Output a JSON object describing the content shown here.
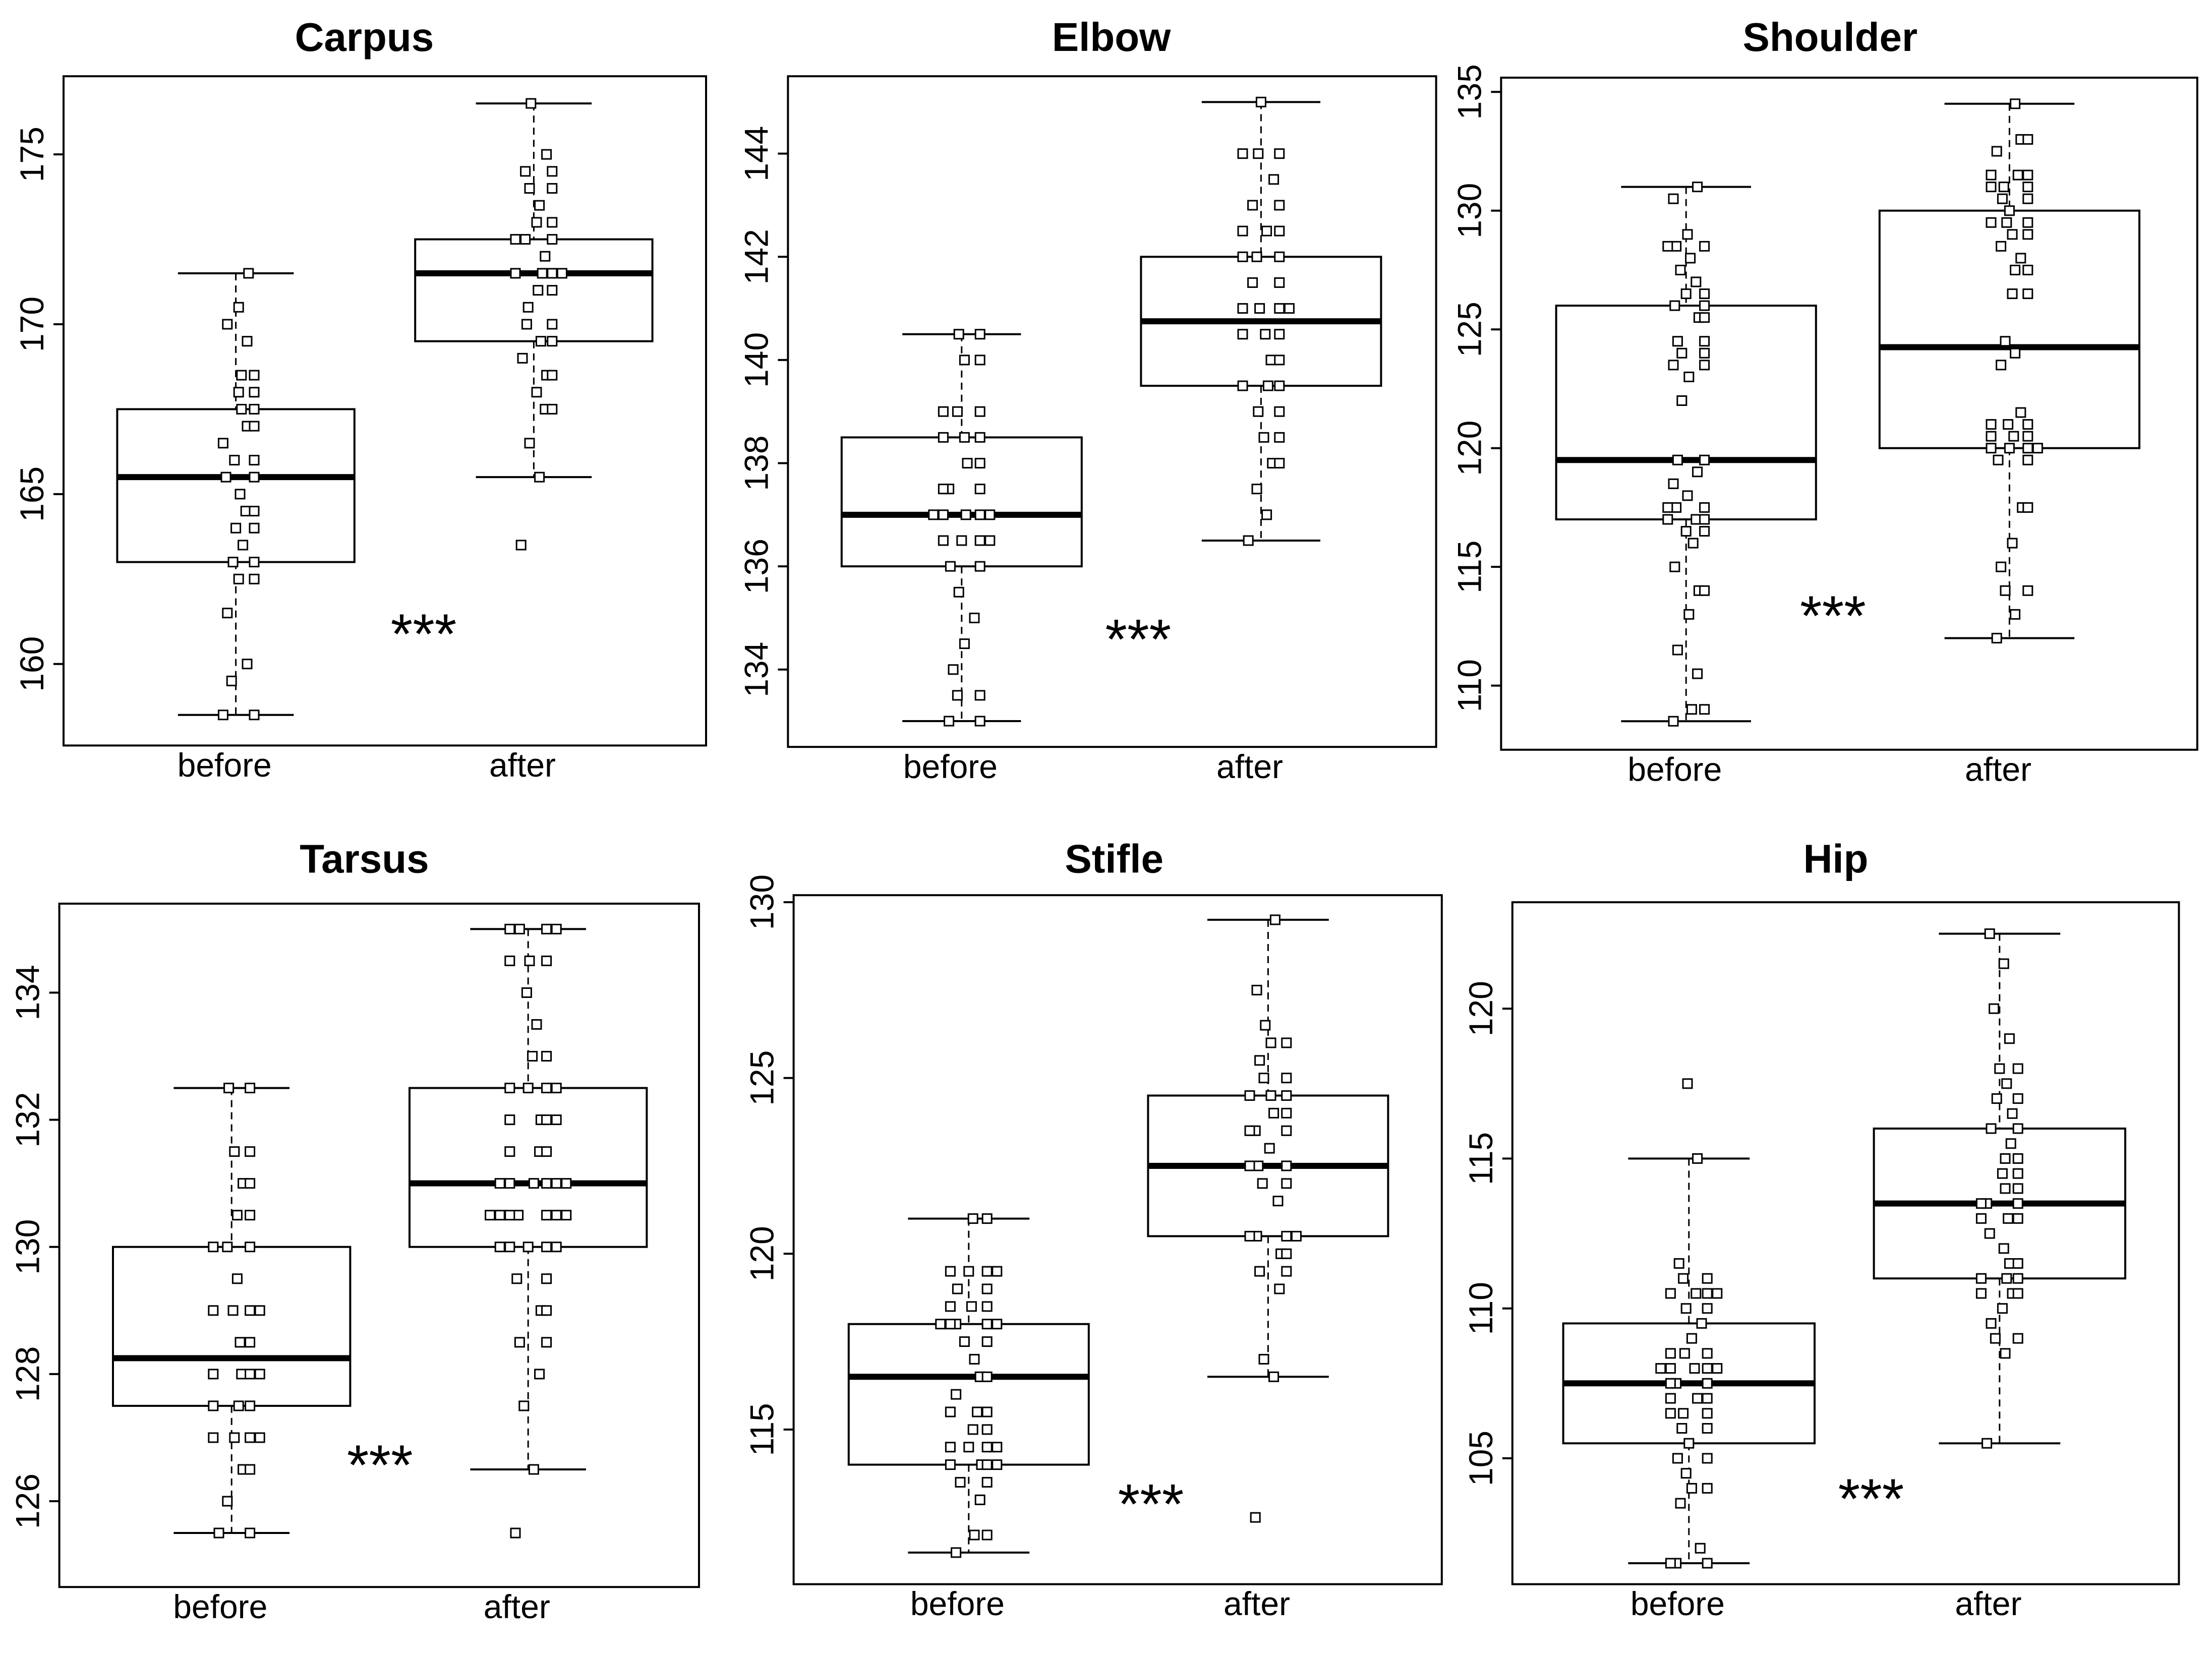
{
  "chart_data": [
    {
      "type": "box",
      "title": "Carpus",
      "categories": [
        "before",
        "after"
      ],
      "significance": "***",
      "yticks": [
        160,
        165,
        170,
        175
      ],
      "ylim": [
        157.6,
        177.3
      ],
      "series": [
        {
          "name": "before",
          "min": 158.5,
          "q1": 163,
          "median": 165.5,
          "q3": 167.5,
          "max": 171.5,
          "points": [
            158.5,
            158.5,
            159.5,
            160,
            161.5,
            162.5,
            162.5,
            163,
            163,
            163.5,
            164,
            164,
            164.5,
            164.5,
            165,
            165.5,
            165.5,
            166,
            166,
            166.5,
            167,
            167,
            167.5,
            167.5,
            168,
            168,
            168.5,
            168.5,
            169.5,
            170,
            170.5,
            171.5
          ]
        },
        {
          "name": "after",
          "min": 165.5,
          "q1": 169.5,
          "median": 171.5,
          "q3": 172.5,
          "max": 176.5,
          "points": [
            163.5,
            165.5,
            166.5,
            167.5,
            167.5,
            168,
            168.5,
            168.5,
            169,
            169.5,
            169.5,
            170,
            170,
            170.5,
            171,
            171,
            171.5,
            171.5,
            171.5,
            171.5,
            172,
            172.5,
            172.5,
            172.5,
            173,
            173,
            173.5,
            174,
            174,
            174.5,
            174.5,
            175,
            176.5
          ]
        }
      ]
    },
    {
      "type": "box",
      "title": "Elbow",
      "categories": [
        "before",
        "after"
      ],
      "significance": "***",
      "yticks": [
        134,
        136,
        138,
        140,
        142,
        144
      ],
      "ylim": [
        132.5,
        145.5
      ],
      "series": [
        {
          "name": "before",
          "min": 133,
          "q1": 136,
          "median": 137,
          "q3": 138.5,
          "max": 140.5,
          "points": [
            133,
            133,
            133.5,
            133.5,
            134,
            134.5,
            135,
            135.5,
            136,
            136,
            136.5,
            136.5,
            136.5,
            136.5,
            137,
            137,
            137,
            137,
            137,
            137.5,
            137.5,
            137.5,
            138,
            138,
            138.5,
            138.5,
            138.5,
            139,
            139,
            139,
            140,
            140,
            140.5,
            140.5
          ]
        },
        {
          "name": "after",
          "min": 136.5,
          "q1": 139.5,
          "median": 140.75,
          "q3": 142,
          "max": 145,
          "points": [
            136.5,
            137,
            137.5,
            138,
            138,
            138.5,
            138.5,
            139,
            139,
            139.5,
            139.5,
            139.5,
            140,
            140,
            140.5,
            140.5,
            140.5,
            141,
            141,
            141,
            141,
            141.5,
            141.5,
            142,
            142,
            142,
            142.5,
            142.5,
            142.5,
            143,
            143,
            143.5,
            144,
            144,
            144,
            145
          ]
        }
      ]
    },
    {
      "type": "box",
      "title": "Shoulder",
      "categories": [
        "before",
        "after"
      ],
      "significance": "***",
      "yticks": [
        110,
        115,
        120,
        125,
        130,
        135
      ],
      "ylim": [
        107.3,
        135.6
      ],
      "series": [
        {
          "name": "before",
          "min": 108.5,
          "q1": 117,
          "median": 119.5,
          "q3": 126,
          "max": 131,
          "points": [
            108.5,
            109,
            109,
            110.5,
            111.5,
            113,
            114,
            114,
            115,
            116,
            116.5,
            116.5,
            117,
            117,
            117,
            117.5,
            117.5,
            117.5,
            118,
            118.5,
            119,
            119.5,
            119.5,
            122,
            123,
            123.5,
            123.5,
            124,
            124,
            124.5,
            124.5,
            125.5,
            125.5,
            126,
            126,
            126.5,
            126.5,
            127,
            127.5,
            128,
            128.5,
            128.5,
            128.5,
            129,
            130.5,
            131
          ]
        },
        {
          "name": "after",
          "min": 112,
          "q1": 120,
          "median": 124.25,
          "q3": 130,
          "max": 134.5,
          "points": [
            112,
            113,
            114,
            114,
            115,
            116,
            117.5,
            117.5,
            119.5,
            119.5,
            120,
            120,
            120,
            120,
            120.5,
            120.5,
            120.5,
            121,
            121,
            121,
            121.5,
            123.5,
            124,
            124.5,
            126.5,
            126.5,
            127.5,
            127.5,
            128,
            128.5,
            129,
            129,
            129.5,
            129.5,
            129.5,
            130,
            130.5,
            130.5,
            131,
            131,
            131,
            131.5,
            131.5,
            131.5,
            132.5,
            133,
            133,
            134.5
          ]
        }
      ]
    },
    {
      "type": "box",
      "title": "Tarsus",
      "categories": [
        "before",
        "after"
      ],
      "significance": "***",
      "yticks": [
        126,
        128,
        130,
        132,
        134
      ],
      "ylim": [
        124.65,
        135.4
      ],
      "series": [
        {
          "name": "before",
          "min": 125.5,
          "q1": 127.5,
          "median": 128.25,
          "q3": 130,
          "max": 132.5,
          "points": [
            125.5,
            125.5,
            126,
            126.5,
            126.5,
            127,
            127,
            127,
            127,
            127.5,
            127.5,
            127.5,
            128,
            128,
            128,
            128,
            128.5,
            128.5,
            129,
            129,
            129,
            129,
            129.5,
            130,
            130,
            130,
            130.5,
            130.5,
            131,
            131,
            131.5,
            131.5,
            132.5,
            132.5
          ]
        },
        {
          "name": "after",
          "min": 126.5,
          "q1": 130,
          "median": 131,
          "q3": 132.5,
          "max": 135,
          "points": [
            125.5,
            126.5,
            127.5,
            128,
            128.5,
            128.5,
            129,
            129,
            129.5,
            129.5,
            130,
            130,
            130,
            130,
            130,
            130.5,
            130.5,
            130.5,
            130.5,
            130.5,
            130.5,
            130.5,
            131,
            131,
            131,
            131,
            131,
            131,
            131.5,
            131.5,
            131.5,
            132,
            132,
            132,
            132,
            132.5,
            132.5,
            132.5,
            132.5,
            133,
            133,
            133.5,
            134,
            134.5,
            134.5,
            134.5,
            135,
            135,
            135,
            135
          ]
        }
      ]
    },
    {
      "type": "box",
      "title": "Stifle",
      "categories": [
        "before",
        "after"
      ],
      "significance": "***",
      "yticks": [
        115,
        120,
        125,
        130
      ],
      "ylim": [
        110.6,
        130.2
      ],
      "series": [
        {
          "name": "before",
          "min": 111.5,
          "q1": 114,
          "median": 116.5,
          "q3": 118,
          "max": 121,
          "points": [
            111.5,
            112,
            112,
            113,
            113.5,
            113.5,
            114,
            114,
            114,
            114,
            114.5,
            114.5,
            114.5,
            114.5,
            115,
            115,
            115.5,
            115.5,
            115.5,
            116,
            116.5,
            116.5,
            117,
            117.5,
            117.5,
            118,
            118,
            118,
            118,
            118,
            118.5,
            118.5,
            118.5,
            119,
            119,
            119.5,
            119.5,
            119.5,
            119.5,
            121,
            121
          ]
        },
        {
          "name": "after",
          "min": 116.5,
          "q1": 120.5,
          "median": 122.5,
          "q3": 124.5,
          "max": 129.5,
          "points": [
            112.5,
            116.5,
            117,
            119,
            119.5,
            119.5,
            120,
            120,
            120.5,
            120.5,
            120.5,
            120.5,
            121.5,
            122,
            122,
            122.5,
            122.5,
            122.5,
            123,
            123.5,
            123.5,
            123.5,
            124,
            124,
            124.5,
            124.5,
            124.5,
            125,
            125,
            125.5,
            126,
            126,
            126.5,
            127.5,
            129.5
          ]
        }
      ]
    },
    {
      "type": "box",
      "title": "Hip",
      "categories": [
        "before",
        "after"
      ],
      "significance": "***",
      "yticks": [
        105,
        110,
        115,
        120
      ],
      "ylim": [
        100.8,
        123.55
      ],
      "series": [
        {
          "name": "before",
          "min": 101.5,
          "q1": 105.5,
          "median": 107.5,
          "q3": 109.5,
          "max": 115,
          "points": [
            101.5,
            101.5,
            101.5,
            102,
            103.5,
            104,
            104,
            104.5,
            105,
            105,
            105.5,
            106,
            106,
            106.5,
            106.5,
            106.5,
            107,
            107,
            107,
            107.5,
            107.5,
            107.5,
            108,
            108,
            108,
            108,
            108,
            108.5,
            108.5,
            108.5,
            109,
            109.5,
            110,
            110,
            110.5,
            110.5,
            110.5,
            110.5,
            111,
            111,
            111.5,
            115,
            117.5
          ]
        },
        {
          "name": "after",
          "min": 105.5,
          "q1": 111,
          "median": 113.5,
          "q3": 116,
          "max": 122.5,
          "points": [
            105.5,
            108.5,
            109,
            109,
            109.5,
            110,
            110.5,
            110.5,
            110.5,
            111,
            111,
            111,
            111.5,
            111.5,
            112,
            112.5,
            113,
            113,
            113,
            113.5,
            113.5,
            113.5,
            114,
            114,
            114.5,
            114.5,
            115,
            115,
            115.5,
            116,
            116,
            116.5,
            117,
            117,
            117.5,
            118,
            118,
            119,
            120,
            121.5,
            122.5
          ]
        }
      ]
    }
  ]
}
